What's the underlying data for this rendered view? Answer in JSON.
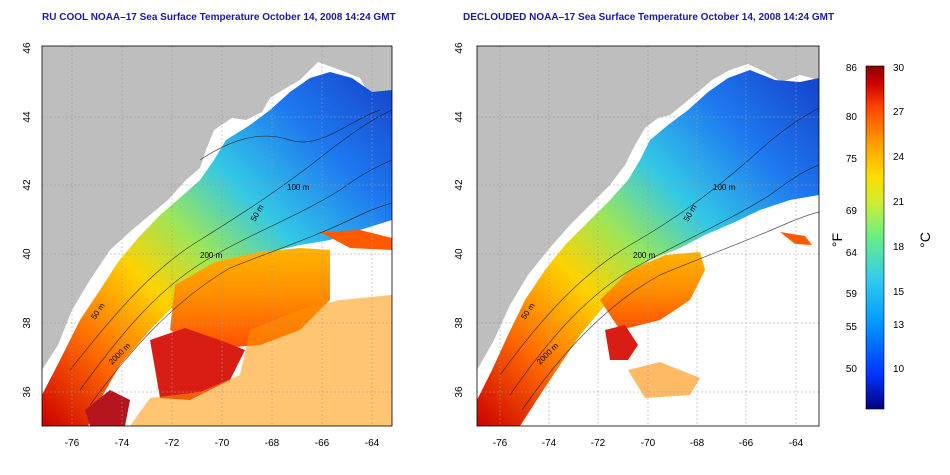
{
  "panels": [
    {
      "title": "RU COOL NOAA–17 Sea Surface Temperature October 14, 2008 14:24 GMT",
      "contour_labels": [
        "50 m",
        "100 m",
        "200 m",
        "50 m",
        "2000 m"
      ]
    },
    {
      "title": "DECLOUDED NOAA–17 Sea Surface Temperature October 14, 2008 14:24 GMT",
      "contour_labels": [
        "50 m",
        "100 m",
        "200 m",
        "50 m",
        "2000 m"
      ]
    }
  ],
  "axes": {
    "lon_ticks": [
      "-76",
      "-74",
      "-72",
      "-70",
      "-68",
      "-66",
      "-64"
    ],
    "lat_ticks": [
      "36",
      "38",
      "40",
      "42",
      "44",
      "46"
    ],
    "lon_range": [
      -77,
      -63
    ],
    "lat_range": [
      35,
      46
    ]
  },
  "colorbar": {
    "f_ticks": [
      "86",
      "80",
      "75",
      "69",
      "64",
      "59",
      "55",
      "50"
    ],
    "c_ticks": [
      "30",
      "27",
      "24",
      "21",
      "18",
      "15",
      "13",
      "10"
    ],
    "f_label": "°F",
    "c_label": "°C",
    "colors": [
      "#000080",
      "#0033ff",
      "#0099ff",
      "#33ccee",
      "#66ee88",
      "#ccee33",
      "#ffdd00",
      "#ff9900",
      "#ff4400",
      "#cc0000",
      "#8b0000"
    ]
  }
}
